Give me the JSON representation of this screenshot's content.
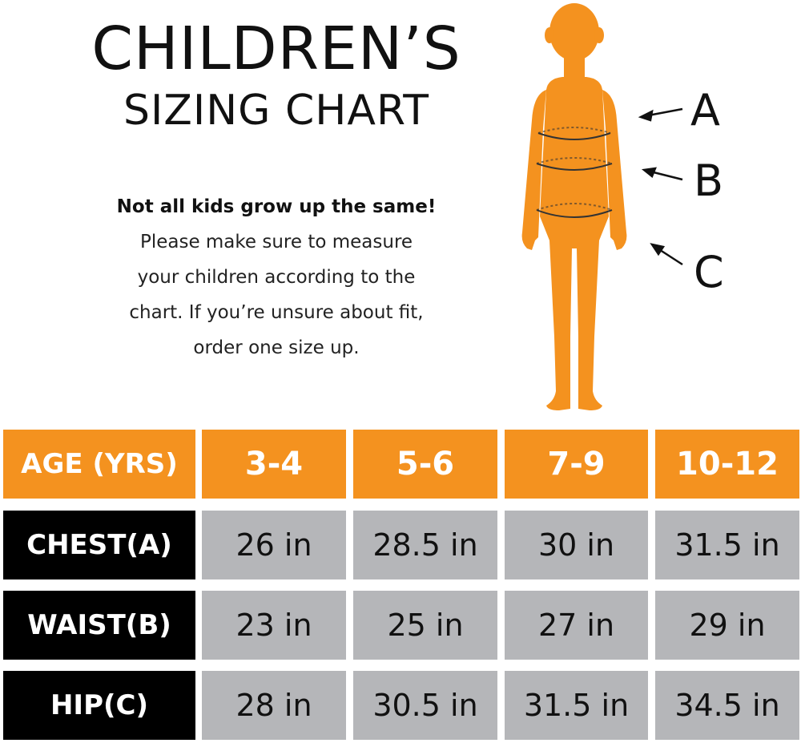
{
  "title": {
    "main": "CHILDREN’S",
    "sub": "SIZING CHART"
  },
  "intro": {
    "bold_line": "Not all kids grow up the same!",
    "lines": [
      "Please make sure to measure",
      "your children according to the",
      "chart. If you’re unsure about fit,",
      "order one size up."
    ]
  },
  "figure": {
    "color": "#f4921f",
    "icon": "child-silhouette",
    "markers": [
      "A",
      "B",
      "C"
    ]
  },
  "colors": {
    "header": "#f4921f",
    "label": "#000000",
    "value": "#b5b6b9"
  },
  "table": {
    "header": [
      "AGE (YRS)",
      "3-4",
      "5-6",
      "7-9",
      "10-12"
    ],
    "rows": [
      {
        "label": "CHEST(A)",
        "values": [
          "26 in",
          "28.5 in",
          "30 in",
          "31.5 in"
        ]
      },
      {
        "label": "WAIST(B)",
        "values": [
          "23 in",
          "25 in",
          "27 in",
          "29 in"
        ]
      },
      {
        "label": "HIP(C)",
        "values": [
          "28 in",
          "30.5 in",
          "31.5 in",
          "34.5 in"
        ]
      }
    ]
  }
}
